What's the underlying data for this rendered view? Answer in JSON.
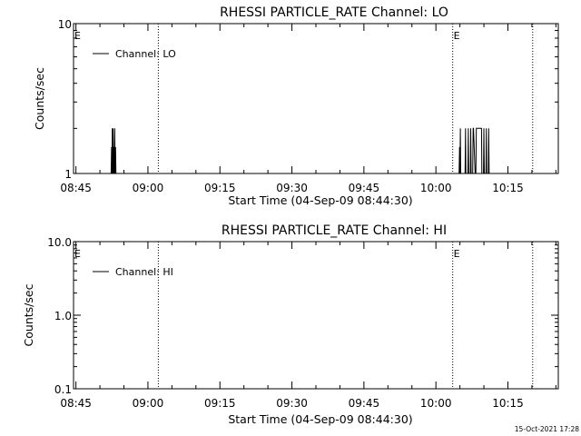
{
  "footer_timestamp": "15-Oct-2021 17:28",
  "chart_data": [
    {
      "type": "line",
      "title": "RHESSI PARTICLE_RATE Channel: LO",
      "xlabel": "Start Time (04-Sep-09 08:44:30)",
      "ylabel": "Counts/sec",
      "y_scale": "log",
      "ylim": [
        1,
        10
      ],
      "y_ticks": [
        {
          "value": 1,
          "label": "1"
        },
        {
          "value": 10,
          "label": "10"
        }
      ],
      "x_ticks": [
        "08:45",
        "09:00",
        "09:15",
        "09:30",
        "09:45",
        "10:00",
        "10:15"
      ],
      "xlim": [
        "08:44:30",
        "10:25:30"
      ],
      "legend": "top-left",
      "series": [
        {
          "name": "Channel: LO",
          "color": "#000000",
          "points": [
            [
              "08:52:20",
              1
            ],
            [
              "08:52:25",
              1.5
            ],
            [
              "08:52:30",
              1
            ],
            [
              "08:52:35",
              2
            ],
            [
              "08:52:40",
              1
            ],
            [
              "08:52:45",
              2
            ],
            [
              "08:52:50",
              1
            ],
            [
              "08:52:55",
              1.5
            ],
            [
              "08:53:00",
              1
            ],
            [
              "08:53:05",
              2
            ],
            [
              "08:53:10",
              1
            ],
            [
              "08:53:15",
              1.5
            ],
            [
              "08:53:20",
              1
            ],
            [
              "10:04:50",
              1
            ],
            [
              "10:04:55",
              1.5
            ],
            [
              "10:05:00",
              1
            ],
            [
              "10:05:05",
              2
            ],
            [
              "10:05:10",
              1
            ],
            [
              "10:06:05",
              1
            ],
            [
              "10:06:10",
              2
            ],
            [
              "10:06:15",
              1
            ],
            [
              "10:06:40",
              1
            ],
            [
              "10:06:45",
              2
            ],
            [
              "10:06:50",
              1
            ],
            [
              "10:07:10",
              1
            ],
            [
              "10:07:15",
              2
            ],
            [
              "10:07:20",
              1
            ],
            [
              "10:07:40",
              1
            ],
            [
              "10:07:45",
              2
            ],
            [
              "10:07:50",
              2
            ],
            [
              "10:08:10",
              1
            ],
            [
              "10:08:20",
              1
            ],
            [
              "10:08:25",
              2
            ],
            [
              "10:09:30",
              2
            ],
            [
              "10:09:35",
              1
            ],
            [
              "10:09:55",
              1
            ],
            [
              "10:10:00",
              2
            ],
            [
              "10:10:05",
              1
            ],
            [
              "10:10:25",
              1
            ],
            [
              "10:10:30",
              2
            ],
            [
              "10:10:35",
              1
            ],
            [
              "10:10:55",
              1
            ],
            [
              "10:11:00",
              2
            ],
            [
              "10:11:05",
              1
            ]
          ]
        }
      ],
      "vlines": [
        "09:02:10",
        "10:03:30",
        "10:20:10"
      ],
      "event_markers": [
        {
          "label": "E",
          "time": "08:44:30"
        },
        {
          "label": "E",
          "time": "10:03:30"
        }
      ]
    },
    {
      "type": "line",
      "title": "RHESSI PARTICLE_RATE Channel: HI",
      "xlabel": "Start Time (04-Sep-09 08:44:30)",
      "ylabel": "Counts/sec",
      "y_scale": "log",
      "ylim": [
        0.1,
        10
      ],
      "y_ticks": [
        {
          "value": 0.1,
          "label": "0.1"
        },
        {
          "value": 1,
          "label": "1.0"
        },
        {
          "value": 10,
          "label": "10.0"
        }
      ],
      "x_ticks": [
        "08:45",
        "09:00",
        "09:15",
        "09:30",
        "09:45",
        "10:00",
        "10:15"
      ],
      "xlim": [
        "08:44:30",
        "10:25:30"
      ],
      "legend": "top-left",
      "series": [
        {
          "name": "Channel: HI",
          "color": "#000000",
          "points": []
        }
      ],
      "vlines": [
        "09:02:10",
        "10:03:30",
        "10:20:10"
      ],
      "event_markers": [
        {
          "label": "E",
          "time": "08:44:30"
        },
        {
          "label": "E",
          "time": "10:03:30"
        }
      ]
    }
  ]
}
